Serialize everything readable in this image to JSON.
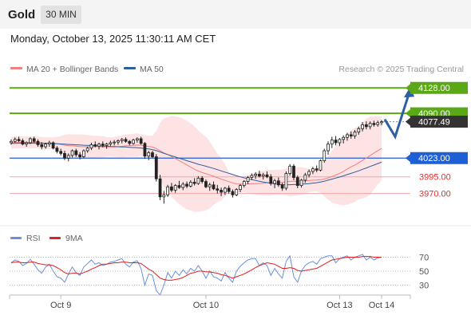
{
  "header": {
    "symbol": "Gold",
    "timeframe": "30 MIN",
    "datetime": "Monday, October 13, 2025 11:30:11 AM CET"
  },
  "legend": {
    "ma20_label": "MA 20 + Bollinger Bands",
    "ma50_label": "MA 50",
    "credit": "Research © 2025 Trading Central",
    "colors": {
      "ma20": "#f08080",
      "ma50": "#2c5f9e",
      "bands": "#fddede"
    }
  },
  "levels": [
    {
      "label": "4128.00",
      "value": 4128,
      "style": "resistance-box",
      "color": "#5aa816"
    },
    {
      "label": "4090.00",
      "value": 4090,
      "style": "resistance-box",
      "color": "#5aa816"
    },
    {
      "label": "4077.49",
      "value": 4077.49,
      "style": "last-price",
      "color": "#333333"
    },
    {
      "label": "4023.00",
      "value": 4023,
      "style": "pivot-box",
      "color": "#1f5fd6"
    },
    {
      "label": "3995.00",
      "value": 3995,
      "style": "support-text",
      "color": "#e03030"
    },
    {
      "label": "3970.00",
      "value": 3970,
      "style": "support-text",
      "color": "#e03030"
    }
  ],
  "rsi_legend": {
    "rsi_label": "RSI",
    "ma9_label": "9MA",
    "colors": {
      "rsi": "#6a8fdc",
      "ma9": "#e02020"
    }
  },
  "chart_data": [
    {
      "type": "candlestick",
      "ylim": [
        3935,
        4145
      ],
      "x_ticks": [
        "Oct 9",
        "Oct 10",
        "Oct 13",
        "Oct 14"
      ],
      "candles": [
        [
          4046,
          4051,
          4043,
          4048
        ],
        [
          4048,
          4054,
          4046,
          4051
        ],
        [
          4051,
          4055,
          4047,
          4049
        ],
        [
          4049,
          4052,
          4042,
          4044
        ],
        [
          4044,
          4048,
          4040,
          4046
        ],
        [
          4046,
          4054,
          4044,
          4052
        ],
        [
          4052,
          4055,
          4046,
          4048
        ],
        [
          4048,
          4051,
          4040,
          4043
        ],
        [
          4043,
          4047,
          4036,
          4040
        ],
        [
          4040,
          4046,
          4037,
          4044
        ],
        [
          4044,
          4049,
          4040,
          4046
        ],
        [
          4046,
          4048,
          4036,
          4038
        ],
        [
          4038,
          4041,
          4030,
          4033
        ],
        [
          4033,
          4037,
          4027,
          4030
        ],
        [
          4030,
          4034,
          4020,
          4023
        ],
        [
          4023,
          4030,
          4018,
          4027
        ],
        [
          4027,
          4036,
          4024,
          4034
        ],
        [
          4034,
          4037,
          4025,
          4028
        ],
        [
          4028,
          4032,
          4021,
          4025
        ],
        [
          4025,
          4036,
          4023,
          4034
        ],
        [
          4034,
          4040,
          4031,
          4038
        ],
        [
          4038,
          4046,
          4035,
          4043
        ],
        [
          4043,
          4048,
          4039,
          4041
        ],
        [
          4041,
          4046,
          4036,
          4044
        ],
        [
          4044,
          4048,
          4039,
          4042
        ],
        [
          4042,
          4046,
          4037,
          4044
        ],
        [
          4044,
          4049,
          4041,
          4046
        ],
        [
          4046,
          4050,
          4042,
          4047
        ],
        [
          4047,
          4051,
          4043,
          4049
        ],
        [
          4049,
          4053,
          4045,
          4051
        ],
        [
          4051,
          4054,
          4046,
          4048
        ],
        [
          4048,
          4050,
          4042,
          4045
        ],
        [
          4045,
          4052,
          4043,
          4050
        ],
        [
          4050,
          4054,
          4046,
          4052
        ],
        [
          4052,
          4055,
          4043,
          4045
        ],
        [
          4045,
          4047,
          4022,
          4026
        ],
        [
          4026,
          4034,
          4020,
          4031
        ],
        [
          4031,
          4034,
          4023,
          4025
        ],
        [
          4025,
          4029,
          3988,
          3992
        ],
        [
          3992,
          3998,
          3960,
          3965
        ],
        [
          3965,
          3974,
          3955,
          3968
        ],
        [
          3968,
          3983,
          3965,
          3980
        ],
        [
          3980,
          3986,
          3972,
          3975
        ],
        [
          3975,
          3984,
          3971,
          3982
        ],
        [
          3982,
          3989,
          3977,
          3979
        ],
        [
          3979,
          3987,
          3975,
          3984
        ],
        [
          3984,
          3988,
          3978,
          3981
        ],
        [
          3981,
          3990,
          3979,
          3987
        ],
        [
          3987,
          3993,
          3982,
          3985
        ],
        [
          3985,
          3996,
          3983,
          3993
        ],
        [
          3993,
          3996,
          3985,
          3988
        ],
        [
          3988,
          3991,
          3978,
          3980
        ],
        [
          3980,
          3986,
          3974,
          3983
        ],
        [
          3983,
          3988,
          3975,
          3977
        ],
        [
          3977,
          3983,
          3970,
          3975
        ],
        [
          3975,
          3979,
          3966,
          3972
        ],
        [
          3972,
          3980,
          3968,
          3978
        ],
        [
          3978,
          3982,
          3970,
          3973
        ],
        [
          3973,
          3976,
          3964,
          3968
        ],
        [
          3968,
          3978,
          3966,
          3976
        ],
        [
          3976,
          3984,
          3972,
          3982
        ],
        [
          3982,
          3990,
          3979,
          3988
        ],
        [
          3988,
          3996,
          3984,
          3994
        ],
        [
          3994,
          4000,
          3990,
          3997
        ],
        [
          3997,
          4002,
          3992,
          3999
        ],
        [
          3999,
          4004,
          3994,
          3996
        ],
        [
          3996,
          4001,
          3991,
          3998
        ],
        [
          3998,
          4003,
          3993,
          3995
        ],
        [
          3995,
          3999,
          3982,
          3985
        ],
        [
          3985,
          3992,
          3978,
          3989
        ],
        [
          3989,
          3994,
          3980,
          3983
        ],
        [
          3983,
          3986,
          3974,
          3978
        ],
        [
          3978,
          4003,
          3975,
          4000
        ],
        [
          4000,
          4014,
          3997,
          4011
        ],
        [
          4011,
          4014,
          3990,
          3994
        ],
        [
          3994,
          3997,
          3978,
          3982
        ],
        [
          3982,
          3992,
          3979,
          3990
        ],
        [
          3990,
          4001,
          3986,
          3998
        ],
        [
          3998,
          4006,
          3994,
          4003
        ],
        [
          4003,
          4010,
          3999,
          4007
        ],
        [
          4007,
          4012,
          4002,
          4005
        ],
        [
          4005,
          4021,
          4003,
          4019
        ],
        [
          4019,
          4037,
          4016,
          4034
        ],
        [
          4034,
          4048,
          4028,
          4044
        ],
        [
          4044,
          4055,
          4038,
          4050
        ],
        [
          4050,
          4056,
          4042,
          4046
        ],
        [
          4046,
          4053,
          4041,
          4051
        ],
        [
          4051,
          4057,
          4045,
          4054
        ],
        [
          4054,
          4061,
          4049,
          4058
        ],
        [
          4058,
          4063,
          4052,
          4056
        ],
        [
          4056,
          4065,
          4052,
          4062
        ],
        [
          4062,
          4070,
          4058,
          4067
        ],
        [
          4067,
          4077,
          4063,
          4073
        ],
        [
          4073,
          4078,
          4066,
          4070
        ],
        [
          4070,
          4078,
          4066,
          4075
        ],
        [
          4075,
          4079,
          4070,
          4073
        ],
        [
          4073,
          4079,
          4070,
          4076
        ],
        [
          4076,
          4080,
          4072,
          4077.49
        ]
      ],
      "ma20": [
        4046,
        4046.4,
        4046.6,
        4046.6,
        4046.3,
        4046.5,
        4046.6,
        4046.3,
        4045.7,
        4045.4,
        4045.4,
        4045,
        4044.4,
        4043.5,
        4042.4,
        4041.7,
        4041.5,
        4040.9,
        4040.2,
        4040.1,
        4040.2,
        4040.3,
        4040.2,
        4040.1,
        4039.9,
        4039.8,
        4039.8,
        4039.8,
        4040.1,
        4040.6,
        4041.4,
        4041.7,
        4042.1,
        4042.5,
        4042.4,
        4041.4,
        4040.4,
        4039.5,
        4037.3,
        4034.1,
        4030.8,
        4028.3,
        4025.3,
        4022.4,
        4019.2,
        4016,
        4012.8,
        4009.6,
        4006.4,
        4003.6,
        4001.5,
        3999.6,
        3997.9,
        3996,
        3993.7,
        3991.5,
        3989.6,
        3987.9,
        3986,
        3984.4,
        3984,
        3984.2,
        3984.4,
        3984.6,
        3984.7,
        3985.1,
        3985.5,
        3985.9,
        3986.2,
        3986.6,
        3986.7,
        3986.7,
        3987.4,
        3988.2,
        3988.3,
        3988.5,
        3988.8,
        3989.1,
        3989.5,
        3989.9,
        3990.1,
        3990.6,
        3991.5,
        3993.3,
        3995.5,
        3997.8,
        4000.2,
        4003.1,
        4006.5,
        4009.8,
        4012.7,
        4015.9,
        4019.6,
        4023.1,
        4026.8,
        4030.6,
        4034.2,
        4037.5
      ],
      "ma50": [
        4045,
        4045.1,
        4045.2,
        4045.2,
        4045.2,
        4045.2,
        4045.2,
        4045.1,
        4045,
        4045,
        4045,
        4044.8,
        4044.5,
        4044.2,
        4043.8,
        4043.5,
        4043.2,
        4042.9,
        4042.6,
        4042.3,
        4042.1,
        4041.8,
        4041.5,
        4041.3,
        4041,
        4040.8,
        4040.5,
        4040.3,
        4040,
        4039.8,
        4039.6,
        4039.2,
        4038.8,
        4038.5,
        4038.1,
        4037.3,
        4036.6,
        4035.7,
        4034.2,
        4032.2,
        4030.1,
        4028.3,
        4026.5,
        4024.7,
        4022.8,
        4021,
        4019.1,
        4017.4,
        4015.6,
        4013.8,
        4012.3,
        4010.8,
        4009.2,
        4007.5,
        4005.7,
        4003.9,
        4002.1,
        4000.3,
        3998.5,
        3996.6,
        3995,
        3993.5,
        3992.1,
        3990.8,
        3989.6,
        3988.4,
        3987.3,
        3986.3,
        3985.3,
        3984.5,
        3983.8,
        3983.3,
        3983.1,
        3983.2,
        3983.4,
        3983.6,
        3984,
        3984.4,
        3984.9,
        3985.6,
        3986.2,
        3987.1,
        3988.3,
        3990,
        3991.6,
        3993.1,
        3994.7,
        3996.4,
        3998.3,
        4000.1,
        4002,
        4004,
        4006.2,
        4008.3,
        4010.5,
        4012.6,
        4014.8,
        4017
      ]
    },
    {
      "type": "line",
      "title": "RSI",
      "y_ticks": [
        70,
        50,
        30
      ],
      "ylim": [
        18,
        82
      ],
      "series": [
        {
          "name": "RSI",
          "values": [
            62,
            66,
            64,
            58,
            61,
            67,
            60,
            52,
            47,
            56,
            60,
            50,
            42,
            40,
            34,
            46,
            56,
            48,
            44,
            56,
            61,
            66,
            60,
            62,
            58,
            60,
            63,
            64,
            66,
            68,
            60,
            56,
            63,
            65,
            54,
            30,
            46,
            44,
            22,
            16,
            30,
            48,
            40,
            50,
            44,
            52,
            46,
            54,
            50,
            58,
            50,
            40,
            50,
            42,
            40,
            36,
            48,
            40,
            34,
            50,
            57,
            62,
            66,
            68,
            68,
            58,
            62,
            58,
            44,
            54,
            46,
            40,
            64,
            72,
            42,
            34,
            50,
            58,
            62,
            64,
            60,
            68,
            70,
            72,
            72,
            62,
            68,
            70,
            72,
            66,
            70,
            72,
            74,
            66,
            70,
            66,
            69,
            70
          ]
        },
        {
          "name": "9MA",
          "values": [
            62,
            63,
            63,
            62,
            62,
            63,
            63,
            61,
            60,
            59,
            59,
            58,
            55,
            52,
            48,
            46,
            47,
            47,
            46,
            48,
            50,
            53,
            55,
            58,
            60,
            60,
            61,
            62,
            62,
            63,
            63,
            62,
            62,
            62,
            61,
            57,
            53,
            50,
            45,
            40,
            38,
            37,
            37,
            38,
            39,
            41,
            44,
            47,
            48,
            50,
            50,
            49,
            49,
            48,
            47,
            45,
            44,
            42,
            40,
            42,
            44,
            46,
            49,
            52,
            55,
            58,
            60,
            62,
            61,
            60,
            57,
            54,
            54,
            55,
            54,
            51,
            50,
            51,
            52,
            53,
            54,
            57,
            60,
            63,
            66,
            67,
            68,
            69,
            70,
            70,
            70,
            70,
            71,
            71,
            71,
            70,
            70,
            70
          ]
        }
      ]
    }
  ]
}
